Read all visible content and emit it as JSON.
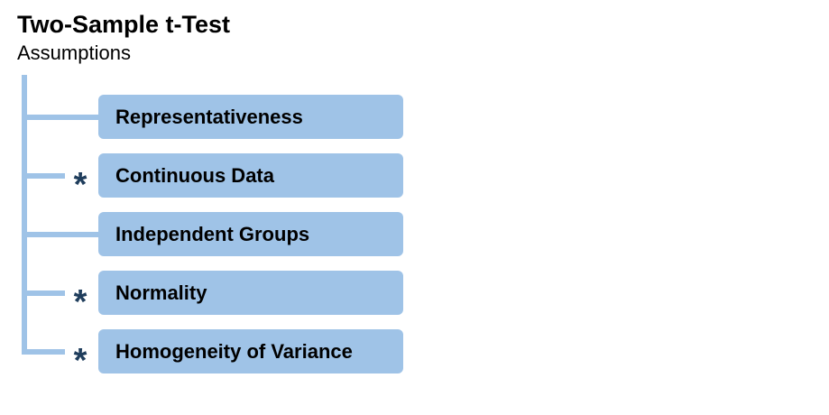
{
  "title": "Two-Sample t-Test",
  "subtitle": "Assumptions",
  "colors": {
    "box_fill": "#9fc3e7",
    "connector": "#9fc3e7",
    "marker": "#1f3d5c"
  },
  "assumptions": [
    {
      "label": "Representativeness",
      "marker": ""
    },
    {
      "label": "Continuous Data",
      "marker": "*"
    },
    {
      "label": "Independent Groups",
      "marker": ""
    },
    {
      "label": "Normality",
      "marker": "*"
    },
    {
      "label": "Homogeneity of Variance",
      "marker": "*"
    }
  ]
}
